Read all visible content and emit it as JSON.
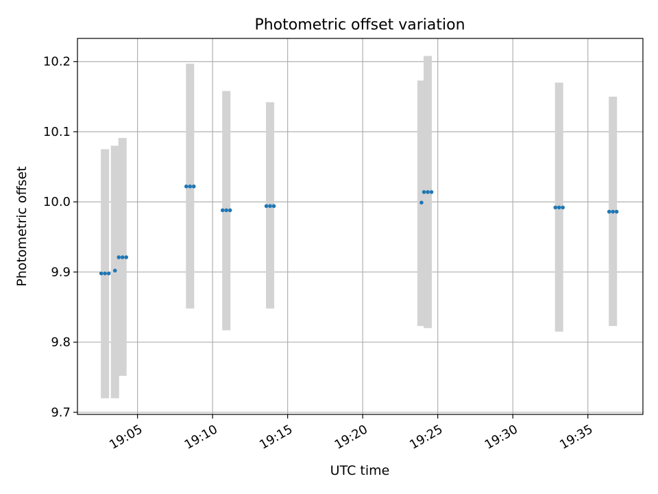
{
  "chart_data": {
    "type": "scatter",
    "title": "Photometric offset variation",
    "xlabel": "UTC time",
    "ylabel": "Photometric offset",
    "xlim": [
      "19:01:00",
      "19:38:40"
    ],
    "ylim": [
      9.697,
      10.233
    ],
    "x_ticks": [
      "19:05",
      "19:10",
      "19:15",
      "19:20",
      "19:25",
      "19:30",
      "19:35"
    ],
    "y_ticks": [
      "9.7",
      "9.8",
      "9.9",
      "10.0",
      "10.1",
      "10.2"
    ],
    "grid": true,
    "colors": {
      "points": "#1f77b4",
      "error_bars": "#d3d3d3"
    },
    "series": [
      {
        "points": [
          {
            "x": "19:02:35",
            "y": 9.898
          },
          {
            "x": "19:02:50",
            "y": 9.898
          },
          {
            "x": "19:03:05",
            "y": 9.898
          },
          {
            "x": "19:03:30",
            "y": 9.902
          },
          {
            "x": "19:03:45",
            "y": 9.921
          },
          {
            "x": "19:04:00",
            "y": 9.921
          },
          {
            "x": "19:04:15",
            "y": 9.921
          },
          {
            "x": "19:08:15",
            "y": 10.022
          },
          {
            "x": "19:08:30",
            "y": 10.022
          },
          {
            "x": "19:08:45",
            "y": 10.022
          },
          {
            "x": "19:10:40",
            "y": 9.988
          },
          {
            "x": "19:10:55",
            "y": 9.988
          },
          {
            "x": "19:11:10",
            "y": 9.988
          },
          {
            "x": "19:13:35",
            "y": 9.994
          },
          {
            "x": "19:13:50",
            "y": 9.994
          },
          {
            "x": "19:14:05",
            "y": 9.994
          },
          {
            "x": "19:23:55",
            "y": 9.999
          },
          {
            "x": "19:24:05",
            "y": 10.014
          },
          {
            "x": "19:24:20",
            "y": 10.014
          },
          {
            "x": "19:24:35",
            "y": 10.014
          },
          {
            "x": "19:32:50",
            "y": 9.992
          },
          {
            "x": "19:33:05",
            "y": 9.992
          },
          {
            "x": "19:33:20",
            "y": 9.992
          },
          {
            "x": "19:36:25",
            "y": 9.986
          },
          {
            "x": "19:36:40",
            "y": 9.986
          },
          {
            "x": "19:36:55",
            "y": 9.986
          }
        ],
        "error_bars": [
          {
            "x": "19:02:50",
            "low": 9.72,
            "high": 10.075
          },
          {
            "x": "19:03:30",
            "low": 9.72,
            "high": 10.08
          },
          {
            "x": "19:04:00",
            "low": 9.752,
            "high": 10.091
          },
          {
            "x": "19:08:30",
            "low": 9.848,
            "high": 10.197
          },
          {
            "x": "19:10:55",
            "low": 9.817,
            "high": 10.158
          },
          {
            "x": "19:13:50",
            "low": 9.848,
            "high": 10.142
          },
          {
            "x": "19:23:55",
            "low": 9.823,
            "high": 10.173
          },
          {
            "x": "19:24:20",
            "low": 9.82,
            "high": 10.208
          },
          {
            "x": "19:33:05",
            "low": 9.815,
            "high": 10.17
          },
          {
            "x": "19:36:40",
            "low": 9.823,
            "high": 10.15
          }
        ]
      }
    ]
  }
}
